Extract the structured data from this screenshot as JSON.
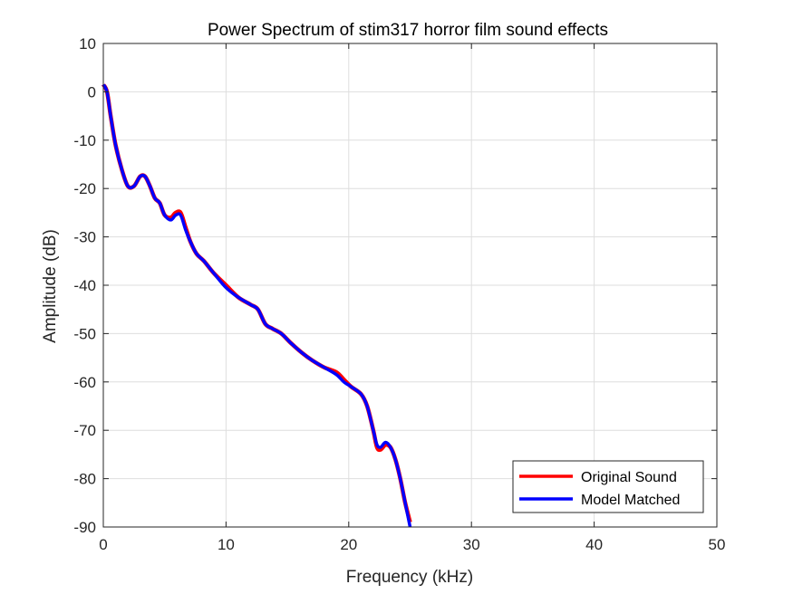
{
  "chart_data": {
    "type": "line",
    "title": "Power Spectrum of stim317 horror film sound effects",
    "xlabel": "Frequency (kHz)",
    "ylabel": "Amplitude (dB)",
    "xlim": [
      0,
      50
    ],
    "ylim": [
      -90,
      10
    ],
    "xticks": [
      0,
      10,
      20,
      30,
      40,
      50
    ],
    "yticks": [
      10,
      0,
      -10,
      -20,
      -30,
      -40,
      -50,
      -60,
      -70,
      -80,
      -90
    ],
    "grid": true,
    "legend_position": "bottom-right",
    "series": [
      {
        "name": "Original Sound",
        "color": "#ff0000",
        "x": [
          0,
          0.3,
          0.6,
          1.0,
          1.5,
          2.0,
          2.5,
          3.0,
          3.4,
          3.8,
          4.2,
          4.6,
          5.0,
          5.5,
          5.9,
          6.3,
          6.7,
          7.1,
          7.6,
          8.2,
          9.0,
          10.0,
          11.0,
          12.0,
          12.6,
          13.2,
          13.8,
          14.5,
          15.3,
          16.2,
          17.0,
          18.0,
          19.0,
          19.6,
          20.2,
          21.0,
          21.5,
          22.0,
          22.3,
          22.6,
          23.0,
          23.4,
          23.8,
          24.2,
          24.6,
          25.0
        ],
        "y": [
          1.5,
          0,
          -5,
          -11,
          -16,
          -19.5,
          -19.5,
          -17.5,
          -17.5,
          -19.5,
          -22,
          -23,
          -25.5,
          -26,
          -25,
          -25,
          -28,
          -31,
          -33.5,
          -35,
          -37.5,
          -40,
          -42.5,
          -44,
          -45,
          -48,
          -49,
          -50,
          -52,
          -54,
          -55.5,
          -57,
          -58,
          -59.5,
          -61,
          -62.5,
          -65,
          -70,
          -73.5,
          -74,
          -73,
          -73.5,
          -76,
          -80,
          -85,
          -89
        ]
      },
      {
        "name": "Model Matched",
        "color": "#0000ff",
        "x": [
          0,
          0.3,
          0.6,
          1.0,
          1.5,
          2.0,
          2.5,
          3.0,
          3.4,
          3.8,
          4.2,
          4.6,
          5.0,
          5.5,
          5.9,
          6.3,
          6.7,
          7.1,
          7.6,
          8.2,
          9.0,
          10.0,
          11.0,
          12.0,
          12.6,
          13.2,
          13.8,
          14.5,
          15.3,
          16.2,
          17.0,
          18.0,
          19.0,
          19.6,
          20.2,
          21.0,
          21.5,
          22.0,
          22.3,
          22.6,
          23.0,
          23.4,
          23.8,
          24.2,
          24.6,
          25.0
        ],
        "y": [
          1.5,
          0,
          -5,
          -11,
          -16,
          -19.5,
          -19.5,
          -17.5,
          -17.5,
          -19.5,
          -22,
          -23,
          -25.5,
          -26.5,
          -25.5,
          -25.5,
          -28.5,
          -31,
          -33.5,
          -35,
          -37.5,
          -40.5,
          -42.5,
          -44,
          -45,
          -48,
          -49,
          -50,
          -52,
          -54,
          -55.5,
          -57,
          -58.5,
          -60,
          -61,
          -62.5,
          -65,
          -70,
          -73,
          -73.5,
          -72.5,
          -73.5,
          -76,
          -80,
          -85,
          -90
        ]
      }
    ]
  }
}
